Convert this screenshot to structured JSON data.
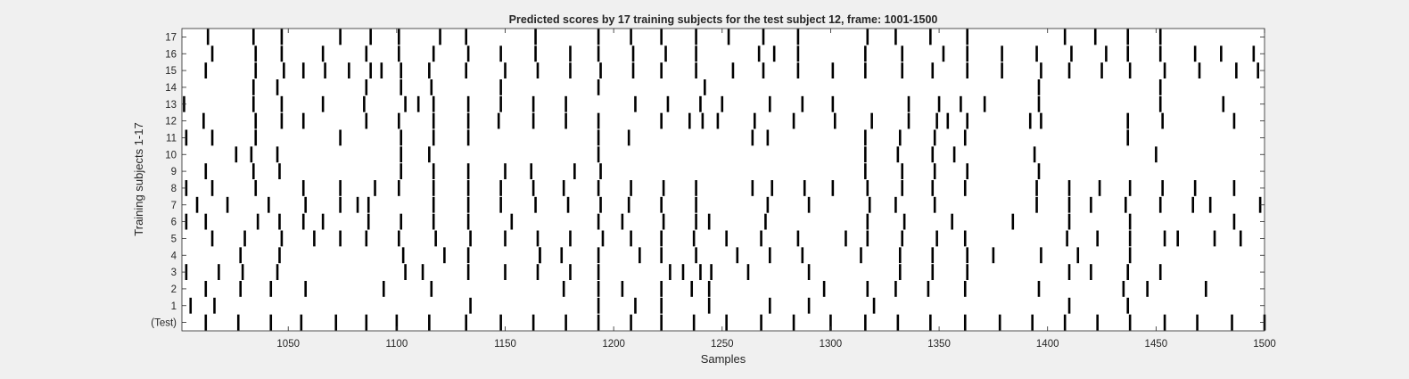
{
  "colors": {
    "background": "#f0f0f0",
    "plot_bg": "#ffffff",
    "mark": "#000000",
    "axis": "#262626",
    "text": "#262626"
  },
  "chart_data": {
    "type": "raster",
    "title": "Predicted scores by 17 training subjects for the test subject 12, frame: 1001-1500",
    "xlabel": "Samples",
    "ylabel": "Training subjects 1-17",
    "xlim": [
      1001,
      1500
    ],
    "xticks": [
      1050,
      1100,
      1150,
      1200,
      1250,
      1300,
      1350,
      1400,
      1450,
      1500
    ],
    "rows": [
      "(Test)",
      "1",
      "2",
      "3",
      "4",
      "5",
      "6",
      "7",
      "8",
      "9",
      "10",
      "11",
      "12",
      "13",
      "14",
      "15",
      "16",
      "17"
    ],
    "grid": false,
    "series": [
      {
        "name": "(Test)",
        "x": [
          1012,
          1027,
          1042,
          1056,
          1072,
          1086,
          1100,
          1115,
          1132,
          1148,
          1163,
          1178,
          1193,
          1208,
          1222,
          1237,
          1252,
          1268,
          1283,
          1300,
          1316,
          1331,
          1346,
          1362,
          1378,
          1393,
          1408,
          1423,
          1438,
          1454,
          1469,
          1485,
          1500
        ]
      },
      {
        "name": "1",
        "x": [
          1005,
          1016,
          1134,
          1193,
          1210,
          1222,
          1244,
          1272,
          1290,
          1320,
          1410,
          1437
        ]
      },
      {
        "name": "2",
        "x": [
          1012,
          1028,
          1042,
          1058,
          1094,
          1116,
          1177,
          1193,
          1204,
          1222,
          1236,
          1244,
          1297,
          1317,
          1330,
          1345,
          1362,
          1396,
          1435,
          1446,
          1473
        ]
      },
      {
        "name": "3",
        "x": [
          1003,
          1018,
          1029,
          1045,
          1104,
          1112,
          1133,
          1150,
          1165,
          1180,
          1193,
          1226,
          1232,
          1240,
          1245,
          1262,
          1290,
          1332,
          1347,
          1363,
          1410,
          1420,
          1437,
          1452
        ]
      },
      {
        "name": "4",
        "x": [
          1028,
          1046,
          1103,
          1122,
          1133,
          1166,
          1166,
          1176,
          1193,
          1212,
          1222,
          1238,
          1257,
          1272,
          1287,
          1314,
          1332,
          1347,
          1363,
          1375,
          1397,
          1414,
          1438
        ]
      },
      {
        "name": "5",
        "x": [
          1015,
          1030,
          1047,
          1062,
          1074,
          1086,
          1101,
          1118,
          1134,
          1150,
          1165,
          1180,
          1195,
          1208,
          1222,
          1237,
          1252,
          1268,
          1285,
          1307,
          1317,
          1333,
          1349,
          1362,
          1409,
          1423,
          1438,
          1454,
          1460,
          1477,
          1489
        ]
      },
      {
        "name": "6",
        "x": [
          1003,
          1012,
          1036,
          1046,
          1057,
          1066,
          1087,
          1102,
          1117,
          1133,
          1153,
          1193,
          1204,
          1223,
          1238,
          1244,
          1270,
          1317,
          1334,
          1356,
          1384,
          1410,
          1438,
          1486
        ]
      },
      {
        "name": "7",
        "x": [
          1008,
          1022,
          1041,
          1058,
          1074,
          1082,
          1087,
          1117,
          1133,
          1148,
          1164,
          1179,
          1194,
          1207,
          1222,
          1238,
          1271,
          1290,
          1318,
          1330,
          1348,
          1395,
          1410,
          1420,
          1436,
          1452,
          1467,
          1475,
          1498
        ]
      },
      {
        "name": "8",
        "x": [
          1003,
          1015,
          1035,
          1057,
          1074,
          1090,
          1101,
          1117,
          1133,
          1148,
          1163,
          1177,
          1193,
          1208,
          1223,
          1238,
          1264,
          1273,
          1288,
          1301,
          1317,
          1333,
          1347,
          1362,
          1395,
          1410,
          1424,
          1438,
          1453,
          1468,
          1486
        ]
      },
      {
        "name": "9",
        "x": [
          1012,
          1034,
          1046,
          1102,
          1117,
          1133,
          1150,
          1162,
          1182,
          1194,
          1316,
          1333,
          1348,
          1363,
          1396
        ]
      },
      {
        "name": "10",
        "x": [
          1026,
          1033,
          1045,
          1102,
          1115,
          1193,
          1316,
          1331,
          1347,
          1357,
          1394,
          1450
        ]
      },
      {
        "name": "11",
        "x": [
          1003,
          1015,
          1035,
          1074,
          1102,
          1117,
          1133,
          1193,
          1207,
          1264,
          1271,
          1316,
          1332,
          1348,
          1362,
          1437
        ]
      },
      {
        "name": "12",
        "x": [
          1011,
          1035,
          1047,
          1057,
          1086,
          1101,
          1117,
          1133,
          1147,
          1163,
          1178,
          1193,
          1222,
          1235,
          1241,
          1248,
          1265,
          1283,
          1302,
          1319,
          1336,
          1349,
          1354,
          1363,
          1392,
          1397,
          1437,
          1453,
          1486
        ]
      },
      {
        "name": "13",
        "x": [
          1002,
          1034,
          1047,
          1066,
          1085,
          1104,
          1110,
          1117,
          1133,
          1148,
          1163,
          1178,
          1210,
          1225,
          1240,
          1250,
          1272,
          1287,
          1301,
          1336,
          1350,
          1360,
          1371,
          1396,
          1452,
          1481
        ]
      },
      {
        "name": "14",
        "x": [
          1034,
          1045,
          1086,
          1102,
          1116,
          1148,
          1193,
          1242,
          1396,
          1452
        ]
      },
      {
        "name": "15",
        "x": [
          1012,
          1035,
          1048,
          1057,
          1067,
          1078,
          1088,
          1093,
          1102,
          1115,
          1132,
          1150,
          1165,
          1180,
          1194,
          1209,
          1222,
          1238,
          1255,
          1269,
          1285,
          1301,
          1316,
          1333,
          1347,
          1363,
          1379,
          1397,
          1410,
          1425,
          1438,
          1454,
          1470,
          1487,
          1497
        ]
      },
      {
        "name": "16",
        "x": [
          1015,
          1035,
          1047,
          1066,
          1086,
          1101,
          1117,
          1133,
          1148,
          1164,
          1180,
          1193,
          1209,
          1224,
          1238,
          1267,
          1274,
          1285,
          1316,
          1333,
          1352,
          1363,
          1379,
          1395,
          1411,
          1427,
          1437,
          1452,
          1468,
          1480,
          1495
        ]
      },
      {
        "name": "17",
        "x": [
          1013,
          1034,
          1047,
          1074,
          1088,
          1101,
          1120,
          1132,
          1164,
          1193,
          1208,
          1222,
          1238,
          1253,
          1269,
          1285,
          1317,
          1330,
          1346,
          1363,
          1408,
          1422,
          1437,
          1452
        ]
      }
    ]
  }
}
